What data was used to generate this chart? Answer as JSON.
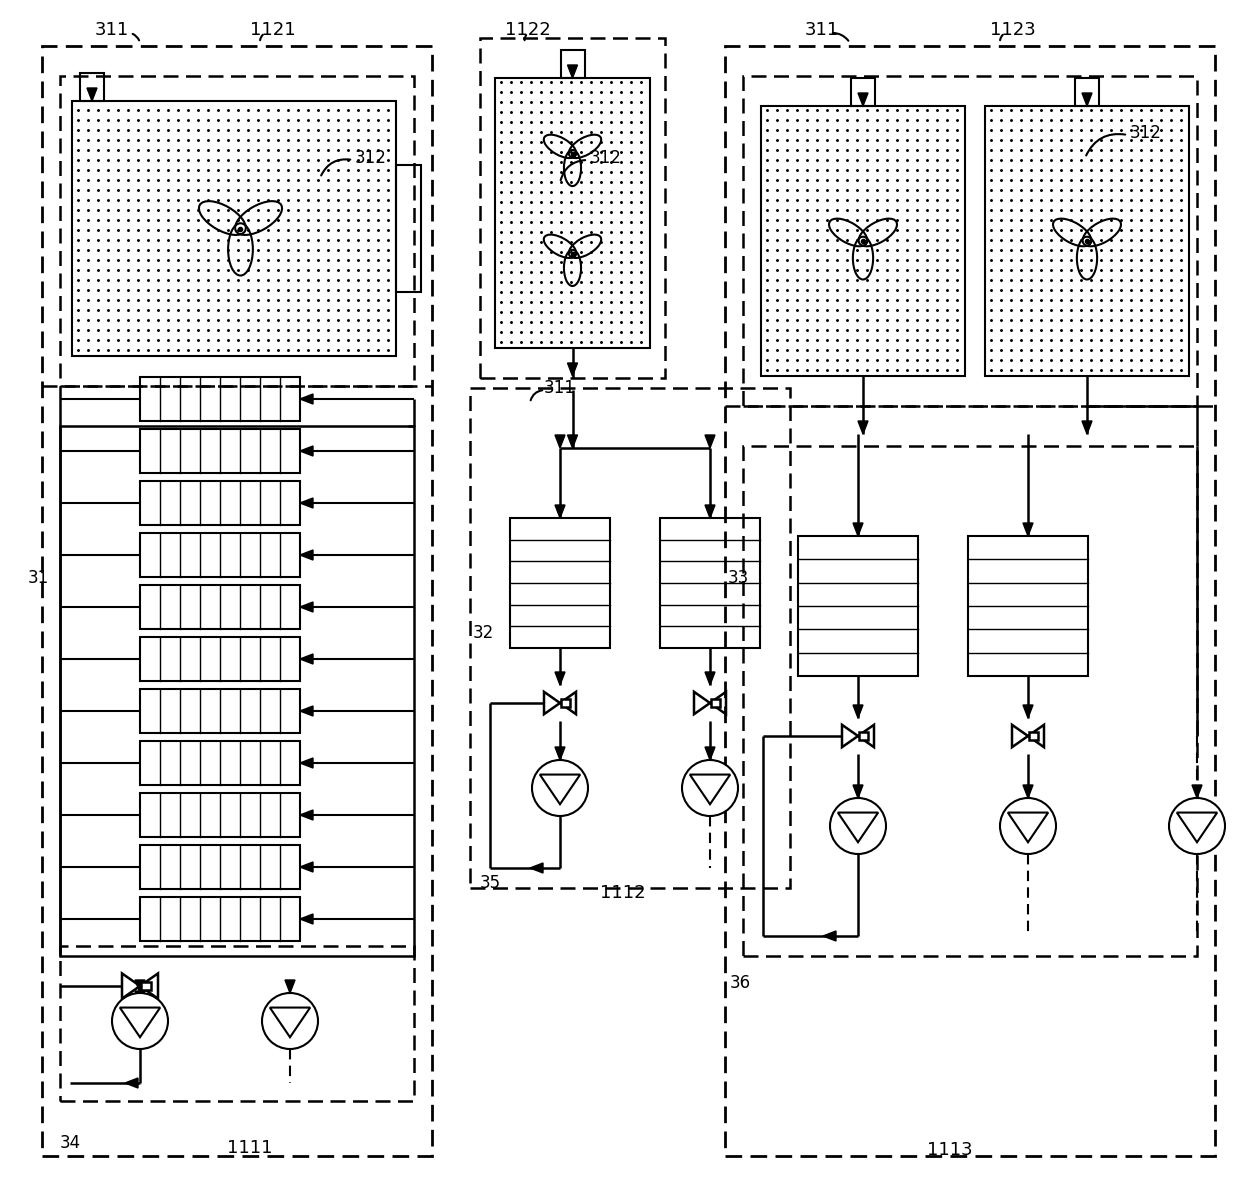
{
  "bg_color": "#ffffff",
  "fig_width": 12.4,
  "fig_height": 11.98,
  "dpi": 100
}
